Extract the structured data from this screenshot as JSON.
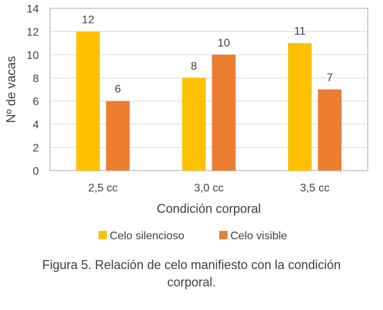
{
  "chart_data": {
    "type": "bar",
    "categories": [
      "2,5 cc",
      "3,0 cc",
      "3,5 cc"
    ],
    "series": [
      {
        "name": "Celo silencioso",
        "values": [
          12,
          8,
          11
        ],
        "color": "#FFC000"
      },
      {
        "name": "Celo visible",
        "values": [
          6,
          10,
          7
        ],
        "color": "#ED7D31"
      }
    ],
    "xlabel": "Condición corporal",
    "ylabel": "Nº de vacas",
    "ylim": [
      0,
      14
    ],
    "yticks": [
      0,
      2,
      4,
      6,
      8,
      10,
      12,
      14
    ],
    "grid": true,
    "legend": "bottom",
    "data_labels": true
  },
  "caption": {
    "line1": "Figura 5. Relación de celo manifiesto con la condición",
    "line2": "corporal."
  }
}
